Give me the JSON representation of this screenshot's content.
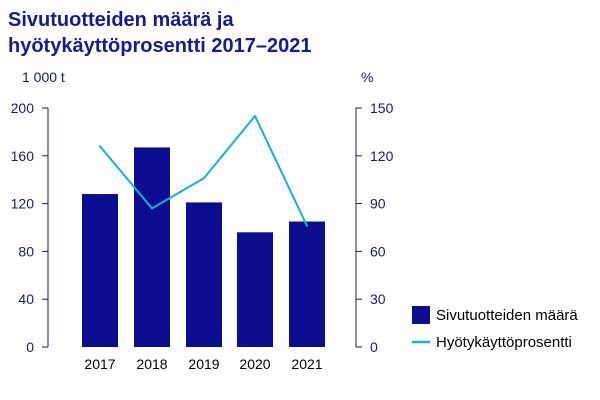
{
  "chart_data": {
    "type": "bar",
    "title_lines": [
      "Sivutuotteiden määrä ja",
      "hyötykäyttöprosentti 2017–2021"
    ],
    "left_unit": "1 000 t",
    "right_unit": "%",
    "categories": [
      "2017",
      "2018",
      "2019",
      "2020",
      "2021"
    ],
    "y_left": {
      "ylim": [
        0,
        200
      ],
      "ticks": [
        0,
        40,
        80,
        120,
        160,
        200
      ]
    },
    "y_right": {
      "ylim": [
        0,
        150
      ],
      "ticks": [
        0,
        30,
        60,
        90,
        120,
        150
      ]
    },
    "series": [
      {
        "name": "Sivutuotteiden määrä",
        "type": "bar",
        "axis": "left",
        "values": [
          128,
          167,
          121,
          96,
          105
        ],
        "color": "#0d0d8f"
      },
      {
        "name": "Hyötykäyttöprosentti",
        "type": "line",
        "axis": "right",
        "values": [
          126,
          87,
          106,
          145,
          76
        ],
        "color": "#1ab0d0"
      }
    ],
    "legend_position": "right",
    "grid": false
  }
}
